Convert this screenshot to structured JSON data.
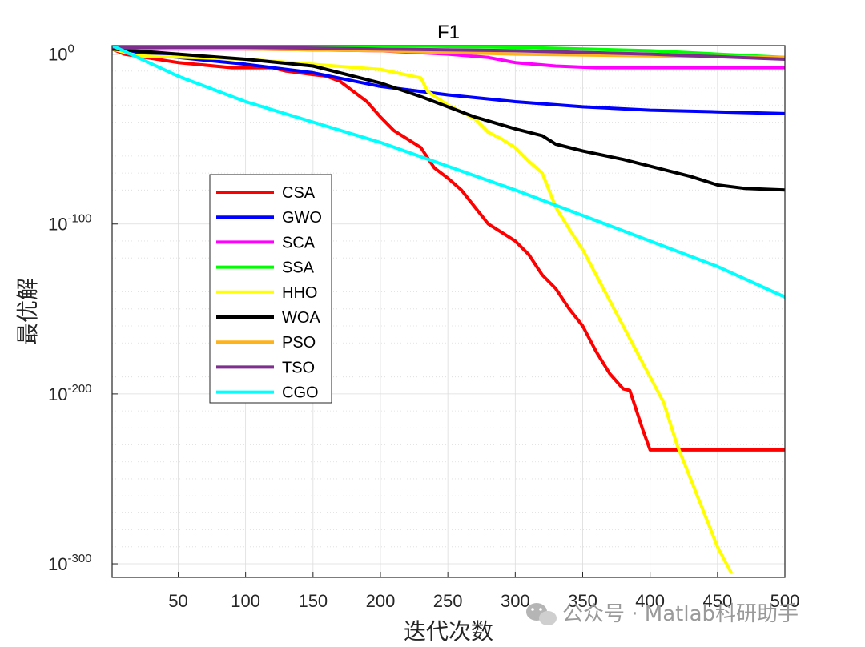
{
  "chart_data": {
    "type": "line",
    "title": "F1",
    "xlabel": "迭代次数",
    "ylabel": "最优解",
    "x_scale": "linear",
    "y_scale": "log",
    "xlim": [
      1,
      500
    ],
    "ylim_exponent": [
      -308,
      5
    ],
    "x_ticks": [
      50,
      100,
      150,
      200,
      250,
      300,
      350,
      400,
      450,
      500
    ],
    "y_ticks": [
      {
        "base": "10",
        "exp": "0",
        "value_exp": 0
      },
      {
        "base": "10",
        "exp": "-100",
        "value_exp": -100
      },
      {
        "base": "10",
        "exp": "-200",
        "value_exp": -200
      },
      {
        "base": "10",
        "exp": "-300",
        "value_exp": -300
      }
    ],
    "grid": true,
    "legend_position": "left-middle",
    "series": [
      {
        "name": "CSA",
        "color": "#ff0000",
        "log10_points": [
          [
            1,
            3
          ],
          [
            10,
            0
          ],
          [
            50,
            -5
          ],
          [
            90,
            -8
          ],
          [
            120,
            -8
          ],
          [
            130,
            -10
          ],
          [
            150,
            -12
          ],
          [
            160,
            -13
          ],
          [
            170,
            -16
          ],
          [
            180,
            -22
          ],
          [
            190,
            -28
          ],
          [
            200,
            -37
          ],
          [
            210,
            -45
          ],
          [
            220,
            -50
          ],
          [
            230,
            -55
          ],
          [
            240,
            -67
          ],
          [
            250,
            -73
          ],
          [
            260,
            -80
          ],
          [
            270,
            -90
          ],
          [
            280,
            -100
          ],
          [
            300,
            -110
          ],
          [
            310,
            -118
          ],
          [
            320,
            -130
          ],
          [
            330,
            -138
          ],
          [
            340,
            -150
          ],
          [
            350,
            -160
          ],
          [
            360,
            -175
          ],
          [
            370,
            -188
          ],
          [
            380,
            -197
          ],
          [
            385,
            -198
          ],
          [
            390,
            -210
          ],
          [
            395,
            -222
          ],
          [
            400,
            -233
          ],
          [
            410,
            -233
          ],
          [
            500,
            -233
          ]
        ]
      },
      {
        "name": "GWO",
        "color": "#0000ff",
        "log10_points": [
          [
            1,
            3
          ],
          [
            50,
            -2
          ],
          [
            100,
            -6
          ],
          [
            150,
            -11
          ],
          [
            200,
            -19
          ],
          [
            250,
            -24
          ],
          [
            300,
            -28
          ],
          [
            350,
            -31
          ],
          [
            400,
            -33
          ],
          [
            450,
            -34
          ],
          [
            500,
            -35
          ]
        ]
      },
      {
        "name": "SCA",
        "color": "#ff00ff",
        "log10_points": [
          [
            1,
            3
          ],
          [
            100,
            3
          ],
          [
            200,
            2
          ],
          [
            250,
            0
          ],
          [
            280,
            -2
          ],
          [
            300,
            -5
          ],
          [
            330,
            -7
          ],
          [
            360,
            -8
          ],
          [
            400,
            -8
          ],
          [
            450,
            -8
          ],
          [
            500,
            -8
          ]
        ]
      },
      {
        "name": "SSA",
        "color": "#00ff00",
        "log10_points": [
          [
            1,
            5
          ],
          [
            200,
            5
          ],
          [
            300,
            4
          ],
          [
            400,
            2
          ],
          [
            450,
            0
          ],
          [
            500,
            -2
          ]
        ]
      },
      {
        "name": "HHO",
        "color": "#ffff00",
        "log10_points": [
          [
            1,
            3
          ],
          [
            20,
            -1
          ],
          [
            100,
            -3
          ],
          [
            200,
            -9
          ],
          [
            230,
            -14
          ],
          [
            235,
            -22
          ],
          [
            250,
            -30
          ],
          [
            270,
            -38
          ],
          [
            280,
            -46
          ],
          [
            290,
            -50
          ],
          [
            300,
            -55
          ],
          [
            310,
            -63
          ],
          [
            320,
            -70
          ],
          [
            330,
            -90
          ],
          [
            340,
            -103
          ],
          [
            350,
            -115
          ],
          [
            360,
            -130
          ],
          [
            370,
            -145
          ],
          [
            380,
            -160
          ],
          [
            390,
            -175
          ],
          [
            400,
            -190
          ],
          [
            410,
            -205
          ],
          [
            420,
            -230
          ],
          [
            430,
            -250
          ],
          [
            440,
            -270
          ],
          [
            450,
            -290
          ],
          [
            460,
            -305
          ]
        ]
      },
      {
        "name": "WOA",
        "color": "#000000",
        "log10_points": [
          [
            1,
            3
          ],
          [
            50,
            0
          ],
          [
            100,
            -3
          ],
          [
            150,
            -7
          ],
          [
            200,
            -17
          ],
          [
            230,
            -25
          ],
          [
            250,
            -31
          ],
          [
            270,
            -37
          ],
          [
            300,
            -44
          ],
          [
            320,
            -48
          ],
          [
            330,
            -53
          ],
          [
            350,
            -57
          ],
          [
            380,
            -62
          ],
          [
            400,
            -66
          ],
          [
            430,
            -72
          ],
          [
            450,
            -77
          ],
          [
            470,
            -79
          ],
          [
            500,
            -80
          ]
        ]
      },
      {
        "name": "PSO",
        "color": "#ffb31a",
        "log10_points": [
          [
            1,
            4
          ],
          [
            100,
            3
          ],
          [
            200,
            2
          ],
          [
            300,
            0
          ],
          [
            400,
            -1
          ],
          [
            500,
            -2
          ]
        ]
      },
      {
        "name": "TSO",
        "color": "#7e2f8e",
        "log10_points": [
          [
            1,
            4
          ],
          [
            100,
            4
          ],
          [
            200,
            3
          ],
          [
            300,
            2
          ],
          [
            400,
            0
          ],
          [
            500,
            -3
          ]
        ]
      },
      {
        "name": "CGO",
        "color": "#00ffff",
        "log10_points": [
          [
            1,
            5
          ],
          [
            50,
            -13
          ],
          [
            100,
            -28
          ],
          [
            150,
            -40
          ],
          [
            200,
            -52
          ],
          [
            250,
            -66
          ],
          [
            300,
            -80
          ],
          [
            350,
            -95
          ],
          [
            400,
            -110
          ],
          [
            450,
            -125
          ],
          [
            500,
            -143
          ]
        ]
      }
    ]
  },
  "watermark": {
    "icon": "wechat-icon",
    "text": "公众号 · Matlab科研助手"
  }
}
